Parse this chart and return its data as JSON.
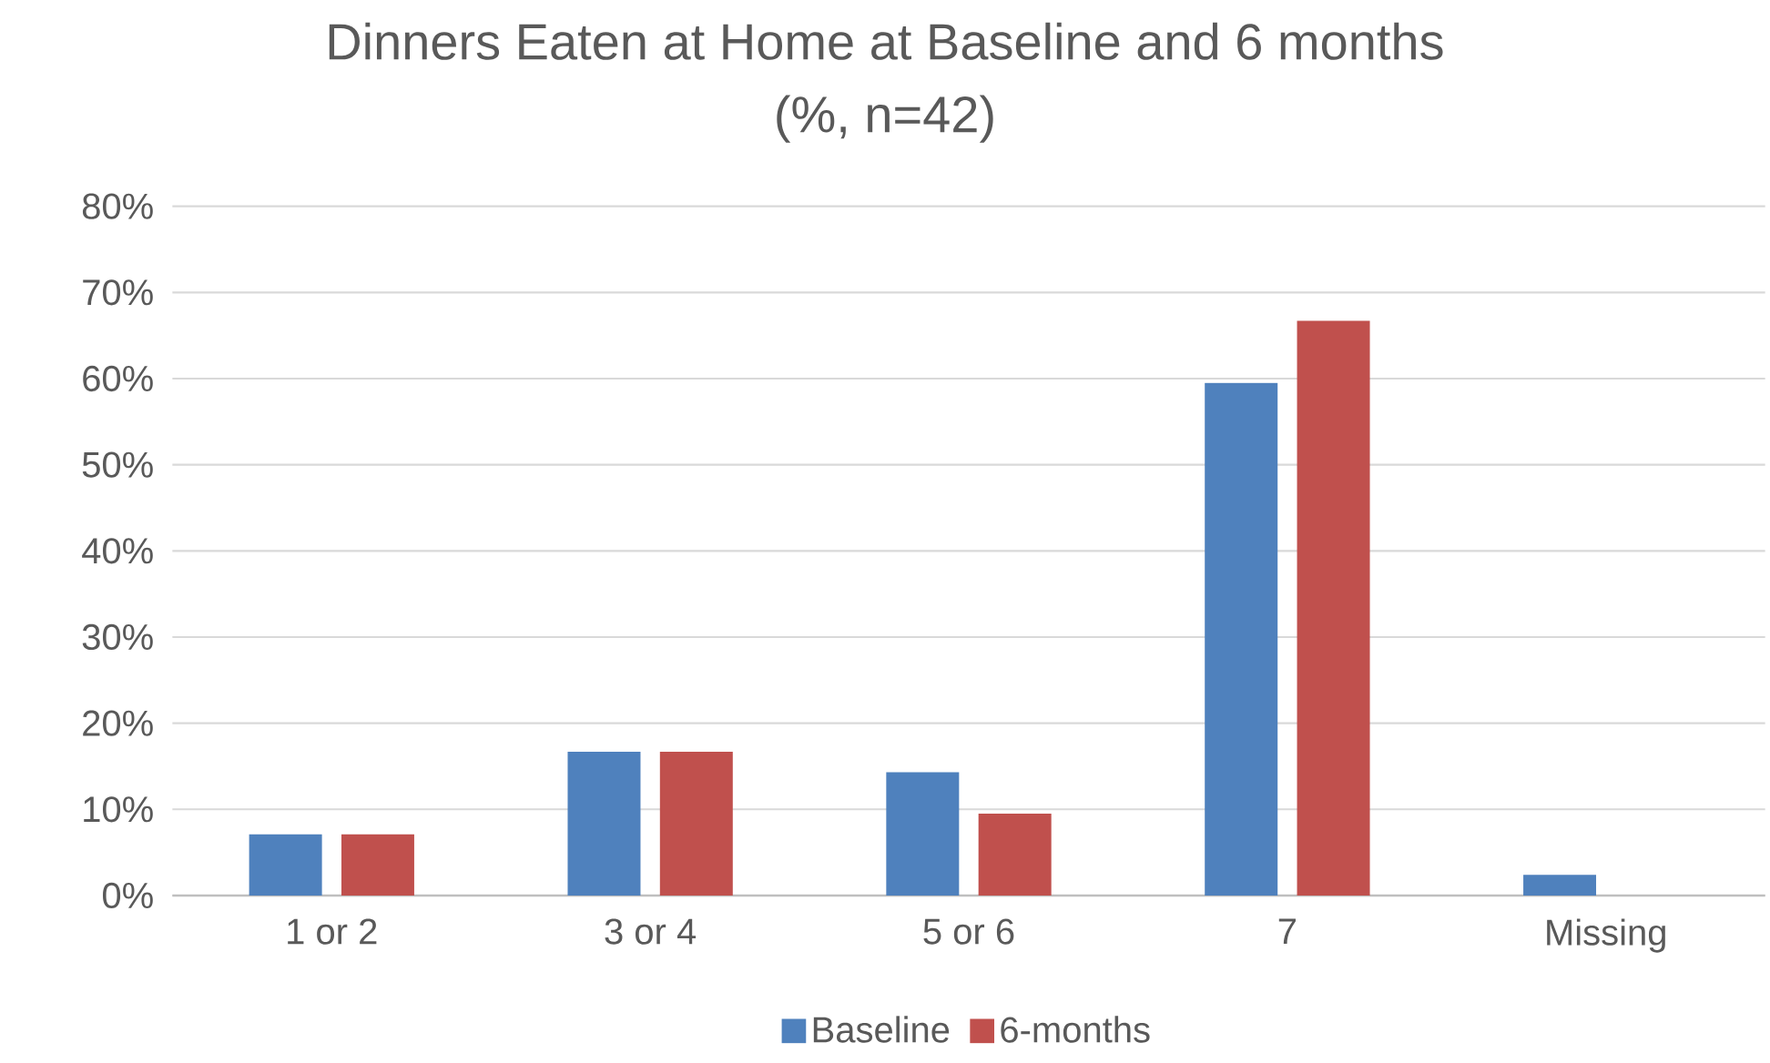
{
  "chart_data": {
    "type": "bar",
    "title": "Dinners Eaten at Home at Baseline and 6 months",
    "subtitle": "(%, n=42)",
    "categories": [
      "1 or 2",
      "3 or 4",
      "5 or 6",
      "7",
      "Missing"
    ],
    "series": [
      {
        "name": "Baseline",
        "color": "#4f81bd",
        "values": [
          7.1,
          16.7,
          14.3,
          59.5,
          2.4
        ]
      },
      {
        "name": "6-months",
        "color": "#c0504d",
        "values": [
          7.1,
          16.7,
          9.5,
          66.7,
          0
        ]
      }
    ],
    "ylim": [
      0,
      80
    ],
    "yticks": [
      {
        "value": 0,
        "label": "0%"
      },
      {
        "value": 10,
        "label": "10%"
      },
      {
        "value": 20,
        "label": "20%"
      },
      {
        "value": 30,
        "label": "30%"
      },
      {
        "value": 40,
        "label": "40%"
      },
      {
        "value": 50,
        "label": "50%"
      },
      {
        "value": 60,
        "label": "60%"
      },
      {
        "value": 70,
        "label": "70%"
      },
      {
        "value": 80,
        "label": "80%"
      }
    ],
    "grid": "y",
    "legend": "bottom"
  }
}
